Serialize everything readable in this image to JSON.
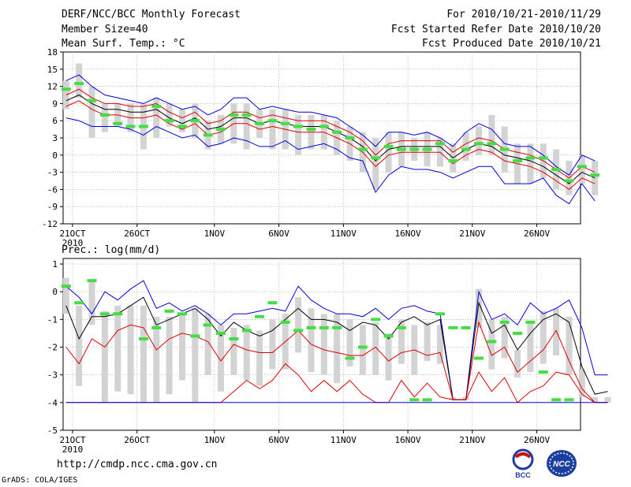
{
  "header": {
    "title": "DERF/NCC/BCC Monthly Forecast",
    "member_size": "Member Size=40",
    "temp_variable": "Mean Surf. Temp.: °C",
    "forecast_period": "For 2010/10/21-2010/11/29",
    "fcst_started": "Fcst Started Refer Date 2010/10/20",
    "fcst_produced": "Fcst Produced Date 2010/10/21"
  },
  "precip_label": "Prec.: log(mm/d)",
  "footer": {
    "url": "http://cmdp.ncc.cma.gov.cn",
    "credit": "GrADS: COLA/IGES",
    "logo_left": "BCC",
    "logo_right": "NCC"
  },
  "colors": {
    "envelope": "#0000dd",
    "spread": "#dd0000",
    "mean": "#000000",
    "observed": "#44dd44",
    "box": "#d3d3d3"
  },
  "chart_data": [
    {
      "type": "line",
      "name": "temperature",
      "title": "Mean Surf. Temp.: °C",
      "ylim": [
        -12,
        18
      ],
      "yticks": [
        -12,
        -9,
        -6,
        -3,
        0,
        3,
        6,
        9,
        12,
        15,
        18
      ],
      "x_labels": [
        {
          "day": 1,
          "label": "21OCT",
          "sub": "2010"
        },
        {
          "day": 6,
          "label": "26OCT"
        },
        {
          "day": 12,
          "label": "1NOV"
        },
        {
          "day": 17,
          "label": "6NOV"
        },
        {
          "day": 22,
          "label": "11NOV"
        },
        {
          "day": 27,
          "label": "16NOV"
        },
        {
          "day": 32,
          "label": "21NOV"
        },
        {
          "day": 37,
          "label": "26NOV"
        }
      ],
      "days": 40,
      "series": [
        {
          "name": "upper",
          "values": [
            13.0,
            14.0,
            12.0,
            10.5,
            10.0,
            9.5,
            9.0,
            10.0,
            9.0,
            8.0,
            8.5,
            7.0,
            8.0,
            10.0,
            10.0,
            8.0,
            8.5,
            8.0,
            7.5,
            7.5,
            7.0,
            6.5,
            5.0,
            3.5,
            1.5,
            4.0,
            4.0,
            3.5,
            4.0,
            3.0,
            1.5,
            4.0,
            5.5,
            4.5,
            2.0,
            1.5,
            1.5,
            0.0,
            -2.0,
            -3.5,
            0.0,
            -1.0
          ]
        },
        {
          "name": "spread_hi",
          "values": [
            10.5,
            11.5,
            10.0,
            9.0,
            9.0,
            8.5,
            8.5,
            9.0,
            7.5,
            6.5,
            7.5,
            5.5,
            6.0,
            7.5,
            7.5,
            6.5,
            7.0,
            6.5,
            6.0,
            6.0,
            6.0,
            5.0,
            4.0,
            2.5,
            0.0,
            2.0,
            2.5,
            2.5,
            2.5,
            2.5,
            0.5,
            2.0,
            3.0,
            2.5,
            1.0,
            0.5,
            0.0,
            -1.0,
            -2.5,
            -4.0,
            -2.0,
            -3.0
          ]
        },
        {
          "name": "mean",
          "values": [
            9.5,
            10.5,
            9.0,
            8.0,
            8.0,
            7.5,
            7.5,
            8.0,
            6.5,
            5.5,
            6.5,
            4.5,
            5.0,
            6.5,
            6.5,
            5.5,
            6.0,
            5.5,
            5.0,
            5.0,
            5.0,
            4.0,
            3.0,
            1.5,
            -1.0,
            1.0,
            1.5,
            1.5,
            1.5,
            1.5,
            -0.5,
            1.0,
            2.0,
            1.5,
            0.0,
            -0.5,
            -1.0,
            -2.0,
            -3.5,
            -5.0,
            -3.0,
            -4.0
          ]
        },
        {
          "name": "spread_lo",
          "values": [
            8.5,
            9.5,
            8.0,
            7.0,
            7.0,
            6.5,
            6.5,
            7.0,
            5.5,
            4.5,
            5.5,
            3.5,
            4.0,
            5.5,
            5.5,
            4.5,
            5.0,
            4.5,
            4.0,
            4.0,
            4.0,
            3.0,
            2.0,
            0.5,
            -2.0,
            0.0,
            0.5,
            0.5,
            0.5,
            0.5,
            -1.5,
            0.0,
            1.0,
            0.5,
            -1.0,
            -1.5,
            -2.0,
            -3.0,
            -4.5,
            -6.0,
            -4.0,
            -5.0
          ]
        },
        {
          "name": "lower",
          "values": [
            6.5,
            6.0,
            5.0,
            5.0,
            5.0,
            4.5,
            3.5,
            5.0,
            4.0,
            3.0,
            3.5,
            1.5,
            2.0,
            3.0,
            2.5,
            1.5,
            1.5,
            2.5,
            1.0,
            1.5,
            2.0,
            1.0,
            -0.5,
            -1.0,
            -6.5,
            -3.5,
            -2.0,
            -2.5,
            -2.5,
            -3.0,
            -4.0,
            -3.0,
            -2.0,
            -2.0,
            -5.0,
            -5.0,
            -5.0,
            -4.0,
            -7.0,
            -8.5,
            -5.0,
            -8.0
          ]
        }
      ],
      "boxes": [
        [
          8,
          13
        ],
        [
          10,
          16
        ],
        [
          3,
          12
        ],
        [
          4,
          9
        ],
        [
          5,
          9
        ],
        [
          4,
          9
        ],
        [
          1,
          9
        ],
        [
          3,
          10
        ],
        [
          5,
          9
        ],
        [
          4,
          8
        ],
        [
          3,
          9
        ],
        [
          1,
          6
        ],
        [
          2,
          7
        ],
        [
          2,
          9
        ],
        [
          1,
          9
        ],
        [
          3,
          8
        ],
        [
          1,
          8
        ],
        [
          1,
          8
        ],
        [
          0,
          7
        ],
        [
          1,
          7
        ],
        [
          1,
          7
        ],
        [
          0,
          6
        ],
        [
          -1,
          5
        ],
        [
          -3,
          4
        ],
        [
          -6,
          3
        ],
        [
          -3,
          4
        ],
        [
          -2,
          4
        ],
        [
          -1,
          3
        ],
        [
          -2,
          4
        ],
        [
          -2,
          3
        ],
        [
          -3,
          2
        ],
        [
          -1,
          4
        ],
        [
          0,
          5
        ],
        [
          0,
          7
        ],
        [
          -3,
          5
        ],
        [
          -5,
          2
        ],
        [
          -5,
          2
        ],
        [
          -4,
          2
        ],
        [
          -6,
          1
        ],
        [
          -7,
          -1
        ],
        [
          -5,
          0
        ],
        [
          -7,
          -1
        ]
      ],
      "observed": [
        11.5,
        12.5,
        9.5,
        7.0,
        5.5,
        5.0,
        5.0,
        8.5,
        6.0,
        5.0,
        6.0,
        3.5,
        4.5,
        7.0,
        7.0,
        5.5,
        6.0,
        5.5,
        5.0,
        4.5,
        5.0,
        4.0,
        3.0,
        1.0,
        -0.5,
        1.5,
        1.0,
        1.0,
        1.0,
        2.0,
        -1.0,
        1.0,
        2.0,
        2.0,
        1.0,
        -1.0,
        -0.5,
        -0.5,
        -2.5,
        -4.5,
        -2.0,
        -3.5
      ]
    },
    {
      "type": "line",
      "name": "precipitation",
      "title": "Prec.: log(mm/d)",
      "ylim": [
        -5,
        1.2
      ],
      "yticks": [
        -5,
        -4,
        -3,
        -2,
        -1,
        0,
        1
      ],
      "x_labels": [
        {
          "day": 1,
          "label": "21OCT",
          "sub": "2010"
        },
        {
          "day": 6,
          "label": "26OCT"
        },
        {
          "day": 12,
          "label": "1NOV"
        },
        {
          "day": 17,
          "label": "6NOV"
        },
        {
          "day": 22,
          "label": "11NOV"
        },
        {
          "day": 27,
          "label": "16NOV"
        },
        {
          "day": 32,
          "label": "21NOV"
        },
        {
          "day": 37,
          "label": "26NOV"
        }
      ],
      "days": 40,
      "series": [
        {
          "name": "upper",
          "values": [
            0.2,
            -0.2,
            -0.8,
            0.0,
            -0.3,
            0.1,
            0.4,
            -0.6,
            -0.4,
            -0.7,
            -0.5,
            -0.8,
            -1.2,
            -0.8,
            -0.8,
            -0.7,
            -0.6,
            -0.7,
            0.2,
            -0.3,
            -0.6,
            -0.8,
            -0.8,
            -0.9,
            -0.6,
            -1.0,
            -0.6,
            -0.5,
            -0.7,
            -0.8,
            -3.9,
            -3.9,
            0.0,
            -1.0,
            -0.8,
            -1.2,
            -0.4,
            -0.8,
            -0.6,
            -0.3,
            -1.3,
            -3.0,
            -3.0
          ]
        },
        {
          "name": "mean",
          "values": [
            -0.5,
            -1.7,
            -0.9,
            -0.9,
            -0.8,
            -0.5,
            -0.2,
            -1.2,
            -1.0,
            -0.8,
            -0.6,
            -1.0,
            -1.6,
            -1.1,
            -1.4,
            -1.6,
            -1.4,
            -1.0,
            -0.6,
            -1.0,
            -1.0,
            -1.1,
            -1.4,
            -1.1,
            -1.2,
            -1.7,
            -1.1,
            -0.9,
            -1.2,
            -1.0,
            -3.9,
            -3.9,
            -0.4,
            -1.5,
            -1.2,
            -2.1,
            -1.5,
            -1.0,
            -0.8,
            -1.1,
            -2.7,
            -3.7,
            -3.6
          ]
        },
        {
          "name": "spread_hi",
          "values": [
            -2.0,
            -2.6,
            -1.7,
            -2.0,
            -1.4,
            -1.2,
            -1.3,
            -2.1,
            -1.7,
            -1.5,
            -1.6,
            -1.8,
            -2.5,
            -1.9,
            -2.1,
            -2.2,
            -2.2,
            -1.8,
            -1.4,
            -1.9,
            -2.1,
            -2.2,
            -2.3,
            -2.3,
            -2.0,
            -2.5,
            -2.2,
            -2.1,
            -2.3,
            -2.2,
            -3.9,
            -3.9,
            -1.1,
            -2.3,
            -2.0,
            -2.9,
            -2.5,
            -2.1,
            -1.4,
            -2.5,
            -3.5,
            -4.0,
            -4.0
          ]
        },
        {
          "name": "spread_lo",
          "values": [
            -4.0,
            -4.0,
            -4.0,
            -4.0,
            -4.0,
            -4.0,
            -4.0,
            -4.0,
            -4.0,
            -4.0,
            -4.0,
            -4.0,
            -4.0,
            -3.6,
            -3.2,
            -3.5,
            -3.2,
            -2.6,
            -3.0,
            -3.6,
            -3.2,
            -3.6,
            -3.2,
            -3.7,
            -4.0,
            -4.0,
            -3.2,
            -3.8,
            -3.3,
            -3.8,
            -3.9,
            -3.9,
            -2.9,
            -3.6,
            -3.1,
            -4.0,
            -3.6,
            -3.4,
            -2.9,
            -3.0,
            -3.7,
            -4.0,
            -4.0
          ]
        },
        {
          "name": "lower",
          "values": [
            -4.0,
            -4.0,
            -4.0,
            -4.0,
            -4.0,
            -4.0,
            -4.0,
            -4.0,
            -4.0,
            -4.0,
            -4.0,
            -4.0,
            -4.0,
            -4.0,
            -4.0,
            -4.0,
            -4.0,
            -4.0,
            -4.0,
            -4.0,
            -4.0,
            -4.0,
            -4.0,
            -4.0,
            -4.0,
            -4.0,
            -4.0,
            -4.0,
            -4.0,
            -4.0,
            -4.0,
            -4.0,
            -4.0,
            -4.0,
            -4.0,
            -4.0,
            -4.0,
            -4.0,
            -4.0,
            -4.0,
            -4.0,
            -4.0,
            -4.0
          ]
        }
      ],
      "boxes": [
        [
          -0.8,
          0.5
        ],
        [
          -3.4,
          -0.5
        ],
        [
          -1.2,
          0.4
        ],
        [
          -4.0,
          -0.7
        ],
        [
          -3.6,
          -0.5
        ],
        [
          -3.7,
          -0.5
        ],
        [
          -4.0,
          -0.5
        ],
        [
          -4.0,
          -0.9
        ],
        [
          -3.7,
          -0.9
        ],
        [
          -3.2,
          -0.8
        ],
        [
          -4.0,
          -0.6
        ],
        [
          -3.0,
          -0.8
        ],
        [
          -3.6,
          -1.2
        ],
        [
          -3.0,
          -1.3
        ],
        [
          -3.2,
          -1.2
        ],
        [
          -3.4,
          -1.4
        ],
        [
          -2.8,
          -1.0
        ],
        [
          -2.8,
          -0.8
        ],
        [
          -2.2,
          -0.2
        ],
        [
          -2.9,
          -0.6
        ],
        [
          -3.0,
          -0.8
        ],
        [
          -3.3,
          -0.8
        ],
        [
          -2.7,
          -1.0
        ],
        [
          -3.0,
          -1.2
        ],
        [
          -3.0,
          -1.1
        ],
        [
          -3.2,
          -1.5
        ],
        [
          -2.6,
          -1.0
        ],
        [
          -3.0,
          -1.2
        ],
        [
          -2.5,
          -1.1
        ],
        [
          -2.6,
          -1.2
        ],
        [
          -3.9,
          -3.8
        ],
        [
          -3.9,
          -3.8
        ],
        [
          -1.3,
          0.1
        ],
        [
          -2.8,
          -1.0
        ],
        [
          -2.4,
          -0.9
        ],
        [
          -3.1,
          -2.1
        ],
        [
          -2.9,
          -1.1
        ],
        [
          -2.6,
          -0.7
        ],
        [
          -2.3,
          -0.6
        ],
        [
          -3.0,
          -0.9
        ],
        [
          -3.8,
          -2.8
        ],
        [
          -4.0,
          -3.8
        ],
        [
          -4.0,
          -3.8
        ]
      ],
      "observed": [
        0.2,
        -0.4,
        0.4,
        -0.8,
        -0.8,
        null,
        -1.7,
        -1.3,
        -0.7,
        -0.8,
        -1.6,
        -1.2,
        -1.5,
        -1.7,
        -1.4,
        -0.9,
        -0.4,
        -1.1,
        -1.4,
        -1.3,
        -1.3,
        -1.3,
        -2.4,
        -2.0,
        -1.0,
        -1.6,
        -1.3,
        -3.9,
        -3.9,
        -0.8,
        -1.3,
        -1.3,
        -2.4,
        -1.8,
        -1.1,
        -1.5,
        -1.1,
        -2.9,
        -3.9,
        -3.9,
        null,
        null,
        null
      ]
    }
  ]
}
